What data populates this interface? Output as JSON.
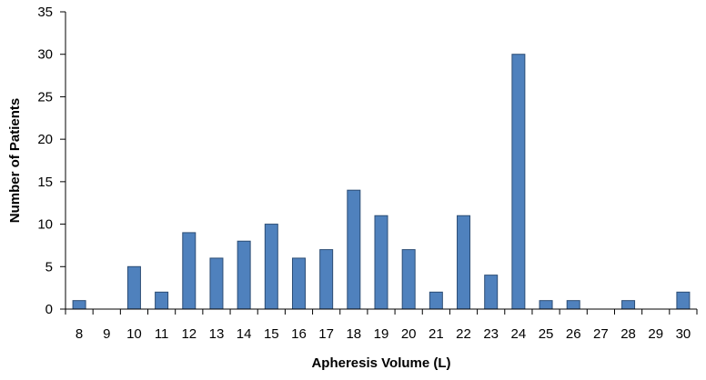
{
  "chart_data": {
    "type": "bar",
    "categories": [
      "8",
      "9",
      "10",
      "11",
      "12",
      "13",
      "14",
      "15",
      "16",
      "17",
      "18",
      "19",
      "20",
      "21",
      "22",
      "23",
      "24",
      "25",
      "26",
      "27",
      "28",
      "29",
      "30"
    ],
    "series": [
      {
        "values": [
          1,
          0,
          5,
          2,
          9,
          6,
          8,
          10,
          6,
          7,
          14,
          11,
          7,
          2,
          11,
          4,
          30,
          1,
          1,
          0,
          1,
          0,
          2
        ]
      }
    ],
    "title": "",
    "xlabel": "Apheresis Volume (L)",
    "ylabel": "Number of Patients",
    "ylim": [
      0,
      35
    ],
    "yticks": [
      "0",
      "5",
      "10",
      "15",
      "20",
      "25",
      "30",
      "35"
    ],
    "grid": false,
    "legend": "none",
    "colors": {
      "bar_fill": "#4f81bd",
      "bar_edge": "#2c4d75"
    }
  }
}
